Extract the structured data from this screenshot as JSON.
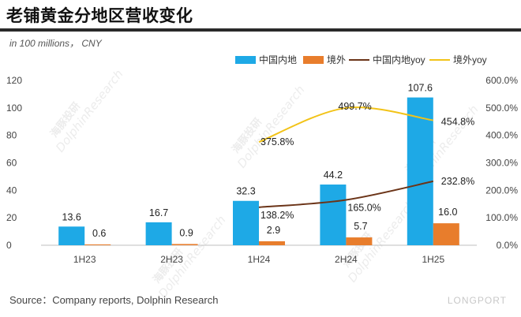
{
  "title": "老铺黄金分地区营收变化",
  "unit": "in 100 millions， CNY",
  "source": "Source：Company reports, Dolphin Research",
  "brand": "LONGPORT",
  "watermark": [
    "海豚投研",
    "DolphinResearch"
  ],
  "chart_data": {
    "type": "bar+line",
    "categories": [
      "1H23",
      "2H23",
      "1H24",
      "2H24",
      "1H25"
    ],
    "series": [
      {
        "name": "中国内地",
        "type": "bar",
        "axis": "left",
        "color": "#1ea9e6",
        "values": [
          13.6,
          16.7,
          32.3,
          44.2,
          107.6
        ],
        "labels": [
          "13.6",
          "16.7",
          "32.3",
          "44.2",
          "107.6"
        ]
      },
      {
        "name": "境外",
        "type": "bar",
        "axis": "left",
        "color": "#e87d2c",
        "values": [
          0.6,
          0.9,
          2.9,
          5.7,
          16.0
        ],
        "labels": [
          "0.6",
          "0.9",
          "2.9",
          "5.7",
          "16.0"
        ]
      },
      {
        "name": "中国内地yoy",
        "type": "line",
        "axis": "right",
        "color": "#6b3418",
        "values": [
          null,
          null,
          138.2,
          165.0,
          232.8
        ],
        "labels": [
          "",
          "",
          "138.2%",
          "165.0%",
          "232.8%"
        ]
      },
      {
        "name": "境外yoy",
        "type": "line",
        "axis": "right",
        "color": "#f2c318",
        "values": [
          null,
          null,
          375.8,
          499.7,
          454.8
        ],
        "labels": [
          "",
          "",
          "375.8%",
          "499.7%",
          "454.8%"
        ]
      }
    ],
    "y_left": {
      "min": 0,
      "max": 120,
      "ticks": [
        "0",
        "20",
        "40",
        "60",
        "80",
        "100",
        "120"
      ]
    },
    "y_right": {
      "min": 0,
      "max": 600,
      "ticks": [
        "0.0%",
        "100.0%",
        "200.0%",
        "300.0%",
        "400.0%",
        "500.0%",
        "600.0%"
      ]
    },
    "legend_position": "top-right",
    "grid": false
  }
}
